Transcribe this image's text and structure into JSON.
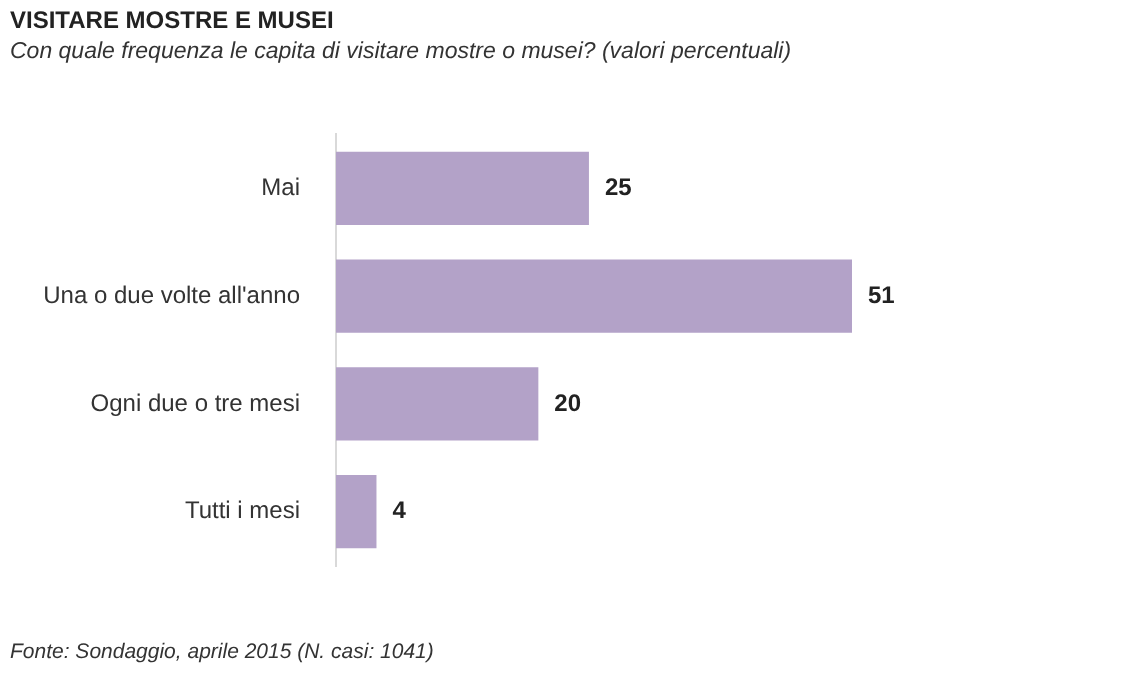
{
  "chart_data": {
    "type": "bar",
    "orientation": "horizontal",
    "title": "VISITARE MOSTRE E MUSEI",
    "subtitle": "Con quale frequenza le capita di visitare mostre o musei? (valori percentuali)",
    "categories": [
      "Mai",
      "Una o due volte all'anno",
      "Ogni due o tre mesi",
      "Tutti i mesi"
    ],
    "values": [
      25,
      51,
      20,
      4
    ],
    "color": "#b3a2c8",
    "data_labels": true,
    "legend": false,
    "tick_labels": "y",
    "annotations": [
      "Fonte: Sondaggio, aprile 2015 (N. casi: 1041)"
    ]
  }
}
